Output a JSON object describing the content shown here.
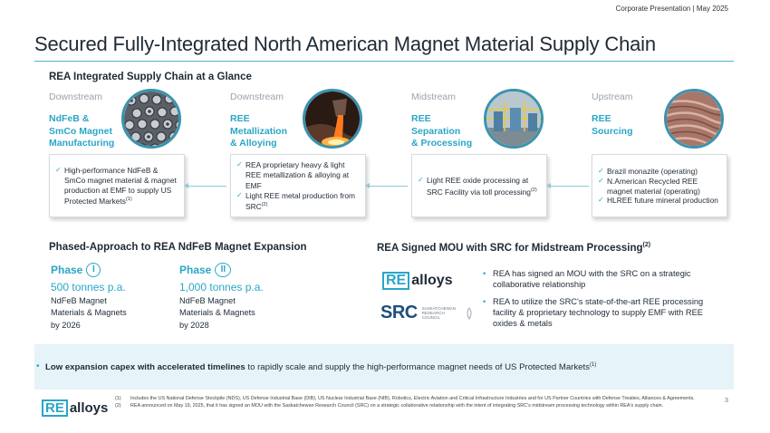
{
  "header": {
    "right_text": "Corporate Presentation  |  May 2025"
  },
  "title": "Secured Fully-Integrated North American Magnet Material Supply Chain",
  "supply_chain": {
    "heading": "REA Integrated Supply Chain at a Glance",
    "stages": [
      {
        "label": "Downstream",
        "name_line1": "NdFeB &",
        "name_line2": "SmCo Magnet",
        "name_line3": "Manufacturing",
        "bullets": [
          {
            "text": "High-performance NdFeB & SmCo magnet material & magnet production at EMF to supply US Protected Markets",
            "sup": "(1)"
          }
        ]
      },
      {
        "label": "Downstream",
        "name_line1": "REE",
        "name_line2": "Metallization",
        "name_line3": "& Alloying",
        "bullets": [
          {
            "text": "REA proprietary heavy & light REE metallization & alloying at EMF",
            "sup": ""
          },
          {
            "text": "Light REE metal production from SRC",
            "sup": "(2)"
          }
        ]
      },
      {
        "label": "Midstream",
        "name_line1": "REE",
        "name_line2": "Separation",
        "name_line3": "& Processing",
        "bullets": [
          {
            "text": "Light REE oxide processing at SRC Facility via toll processing",
            "sup": "(2)"
          }
        ]
      },
      {
        "label": "Upstream",
        "name_line1": "REE",
        "name_line2": "Sourcing",
        "name_line3": "",
        "bullets": [
          {
            "text": "Brazil monazite (operating)",
            "sup": ""
          },
          {
            "text": "N.American Recycled REE magnet material (operating)",
            "sup": ""
          },
          {
            "text": "HLREE future mineral production",
            "sup": ""
          }
        ]
      }
    ]
  },
  "phased": {
    "heading": "Phased-Approach to REA NdFeB Magnet Expansion",
    "phases": [
      {
        "label": "Phase",
        "numeral": "I",
        "capacity": "500 tonnes p.a.",
        "desc_line1": "NdFeB Magnet",
        "desc_line2": "Materials & Magnets",
        "year": "by 2026"
      },
      {
        "label": "Phase",
        "numeral": "II",
        "capacity": "1,000 tonnes p.a.",
        "desc_line1": "NdFeB Magnet",
        "desc_line2": "Materials & Magnets",
        "year": "by 2028"
      }
    ]
  },
  "mou": {
    "heading": "REA Signed MOU with SRC for Midstream Processing",
    "heading_sup": "(2)",
    "bullets": [
      "REA has signed an MOU with the SRC on a strategic collaborative relationship",
      "REA to utilize the SRC's state-of-the-art REE processing facility & proprietary technology to supply EMF with REE oxides & metals"
    ],
    "src_logo_text": "SRC",
    "src_logo_sub": "Saskatchewan Research Council"
  },
  "logo": {
    "re": "RE",
    "alloys": "alloys"
  },
  "banner": {
    "bold": "Low expansion capex with accelerated timelines",
    "rest": " to rapidly scale and supply the high-performance magnet needs of US Protected Markets",
    "sup": "(1)"
  },
  "footnotes": [
    {
      "num": "(1)",
      "text": "Includes the US National Defense Stockpile (NDS), US Defense Industrial Base (DIB), US Nuclear Industrial Base (NIB), Robotics, Electric Aviation and Critical Infrastructure Industries and for US Partner Countries with Defense Treaties, Alliances & Agreements."
    },
    {
      "num": "(2)",
      "text": "REA announced on May 19, 2025, that it has signed an MOU with the Saskatchewan Research Council (SRC) on a strategic collaborative relationship with the intent of integrating SRC's midstream processing technology within REA's supply chain."
    }
  ],
  "page_number": "3",
  "colors": {
    "accent": "#2aa6c8",
    "rule": "#4eb3cf",
    "banner_bg": "#e6f3f8",
    "text": "#1f2a36"
  }
}
